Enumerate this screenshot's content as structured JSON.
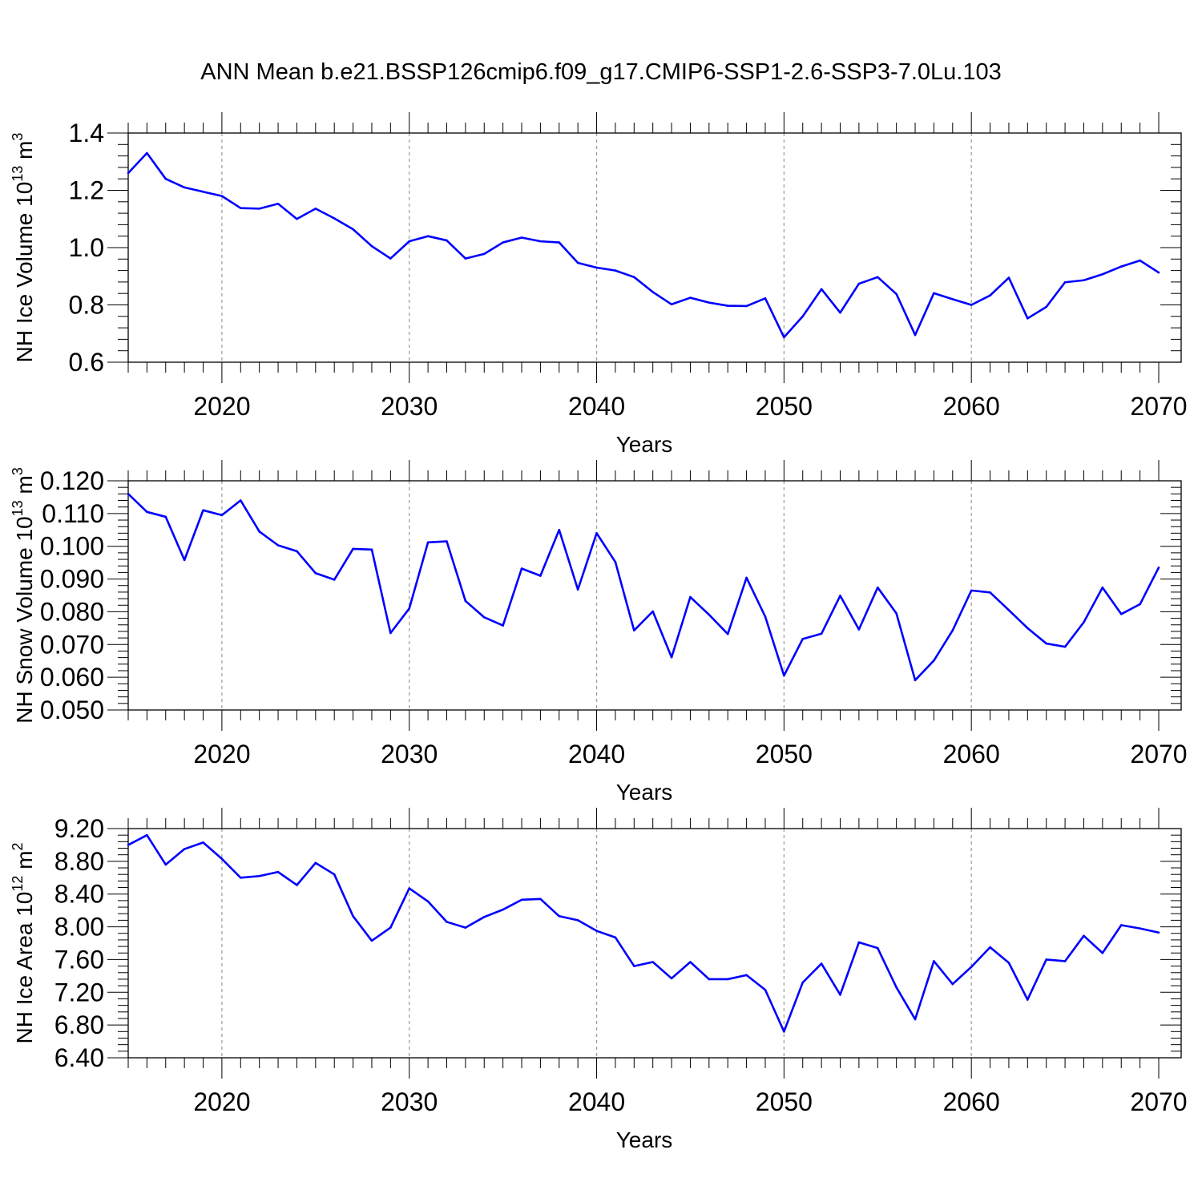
{
  "title": "ANN Mean b.e21.BSSP126cmip6.f09_g17.CMIP6-SSP1-2.6-SSP3-7.0Lu.103",
  "colors": {
    "line": "#0000ff",
    "axis": "#000000",
    "grid": "#9a9a9a"
  },
  "chart_data": [
    {
      "type": "line",
      "title": "",
      "xlabel": "Years",
      "ylabel": "NH Ice Volume 10",
      "ylabel_sup1": "13",
      "ylabel_unit": " m",
      "ylabel_sup2": "3",
      "xlim": [
        2015,
        2070
      ],
      "ylim": [
        0.6,
        1.4
      ],
      "x_ticks": [
        2020,
        2030,
        2040,
        2050,
        2060,
        2070
      ],
      "x_tick_labels": [
        "2020",
        "2030",
        "2040",
        "2050",
        "2060",
        "2070"
      ],
      "y_ticks": [
        0.6,
        0.8,
        1.0,
        1.2,
        1.4
      ],
      "y_tick_labels": [
        "0.6",
        "0.8",
        "1.0",
        "1.2",
        "1.4"
      ],
      "grid": "vertical dashed at major x ticks",
      "series": [
        {
          "x": [
            2015,
            2016,
            2017,
            2018,
            2019,
            2020,
            2021,
            2022,
            2023,
            2024,
            2025,
            2026,
            2027,
            2028,
            2029,
            2030,
            2031,
            2032,
            2033,
            2034,
            2035,
            2036,
            2037,
            2038,
            2039,
            2040,
            2041,
            2042,
            2043,
            2044,
            2045,
            2046,
            2047,
            2048,
            2049,
            2050,
            2051,
            2052,
            2053,
            2054,
            2055,
            2056,
            2057,
            2058,
            2059,
            2060,
            2061,
            2062,
            2063,
            2064,
            2065,
            2066,
            2067,
            2068,
            2069,
            2070
          ],
          "values": [
            1.26,
            1.33,
            1.24,
            1.21,
            1.195,
            1.18,
            1.138,
            1.136,
            1.153,
            1.1,
            1.136,
            1.102,
            1.064,
            1.005,
            0.962,
            1.022,
            1.04,
            1.025,
            0.962,
            0.978,
            1.018,
            1.035,
            1.022,
            1.018,
            0.947,
            0.93,
            0.92,
            0.897,
            0.845,
            0.802,
            0.825,
            0.808,
            0.797,
            0.796,
            0.823,
            0.687,
            0.76,
            0.855,
            0.773,
            0.874,
            0.897,
            0.838,
            0.695,
            0.841,
            0.82,
            0.8,
            0.833,
            0.895,
            0.753,
            0.793,
            0.879,
            0.886,
            0.907,
            0.934,
            0.955,
            0.913
          ]
        }
      ]
    },
    {
      "type": "line",
      "title": "",
      "xlabel": "Years",
      "ylabel": "NH Snow Volume 10",
      "ylabel_sup1": "13",
      "ylabel_unit": " m",
      "ylabel_sup2": "3",
      "xlim": [
        2015,
        2070
      ],
      "ylim": [
        0.05,
        0.12
      ],
      "x_ticks": [
        2020,
        2030,
        2040,
        2050,
        2060,
        2070
      ],
      "x_tick_labels": [
        "2020",
        "2030",
        "2040",
        "2050",
        "2060",
        "2070"
      ],
      "y_ticks": [
        0.05,
        0.06,
        0.07,
        0.08,
        0.09,
        0.1,
        0.11,
        0.12
      ],
      "y_tick_labels": [
        "0.050",
        "0.060",
        "0.070",
        "0.080",
        "0.090",
        "0.100",
        "0.110",
        "0.120"
      ],
      "grid": "vertical dashed at major x ticks",
      "series": [
        {
          "x": [
            2015,
            2016,
            2017,
            2018,
            2019,
            2020,
            2021,
            2022,
            2023,
            2024,
            2025,
            2026,
            2027,
            2028,
            2029,
            2030,
            2031,
            2032,
            2033,
            2034,
            2035,
            2036,
            2037,
            2038,
            2039,
            2040,
            2041,
            2042,
            2043,
            2044,
            2045,
            2046,
            2047,
            2048,
            2049,
            2050,
            2051,
            2052,
            2053,
            2054,
            2055,
            2056,
            2057,
            2058,
            2059,
            2060,
            2061,
            2062,
            2063,
            2064,
            2065,
            2066,
            2067,
            2068,
            2069,
            2070
          ],
          "values": [
            0.116,
            0.1105,
            0.109,
            0.0958,
            0.111,
            0.1095,
            0.114,
            0.1045,
            0.1003,
            0.0985,
            0.0918,
            0.0898,
            0.0992,
            0.099,
            0.0735,
            0.081,
            0.1012,
            0.1015,
            0.0833,
            0.0783,
            0.0758,
            0.0932,
            0.091,
            0.105,
            0.0868,
            0.104,
            0.0952,
            0.0743,
            0.0801,
            0.0661,
            0.0845,
            0.0791,
            0.0732,
            0.0904,
            0.0785,
            0.0605,
            0.0717,
            0.0733,
            0.0849,
            0.0746,
            0.0874,
            0.0795,
            0.0591,
            0.0651,
            0.0743,
            0.0865,
            0.0859,
            0.0805,
            0.075,
            0.0703,
            0.0693,
            0.0768,
            0.0874,
            0.0793,
            0.0823,
            0.0935
          ]
        }
      ]
    },
    {
      "type": "line",
      "title": "",
      "xlabel": "Years",
      "ylabel": "NH Ice Area 10",
      "ylabel_sup1": "12",
      "ylabel_unit": " m",
      "ylabel_sup2": "2",
      "xlim": [
        2015,
        2070
      ],
      "ylim": [
        6.4,
        9.2
      ],
      "x_ticks": [
        2020,
        2030,
        2040,
        2050,
        2060,
        2070
      ],
      "x_tick_labels": [
        "2020",
        "2030",
        "2040",
        "2050",
        "2060",
        "2070"
      ],
      "y_ticks": [
        6.4,
        6.8,
        7.2,
        7.6,
        8.0,
        8.4,
        8.8,
        9.2
      ],
      "y_tick_labels": [
        "6.40",
        "6.80",
        "7.20",
        "7.60",
        "8.00",
        "8.40",
        "8.80",
        "9.20"
      ],
      "grid": "vertical dashed at major x ticks",
      "series": [
        {
          "x": [
            2015,
            2016,
            2017,
            2018,
            2019,
            2020,
            2021,
            2022,
            2023,
            2024,
            2025,
            2026,
            2027,
            2028,
            2029,
            2030,
            2031,
            2032,
            2033,
            2034,
            2035,
            2036,
            2037,
            2038,
            2039,
            2040,
            2041,
            2042,
            2043,
            2044,
            2045,
            2046,
            2047,
            2048,
            2049,
            2050,
            2051,
            2052,
            2053,
            2054,
            2055,
            2056,
            2057,
            2058,
            2059,
            2060,
            2061,
            2062,
            2063,
            2064,
            2065,
            2066,
            2067,
            2068,
            2069,
            2070
          ],
          "values": [
            9.0,
            9.12,
            8.76,
            8.95,
            9.03,
            8.83,
            8.6,
            8.62,
            8.67,
            8.51,
            8.78,
            8.64,
            8.13,
            7.83,
            7.99,
            8.47,
            8.31,
            8.06,
            7.99,
            8.12,
            8.21,
            8.33,
            8.34,
            8.13,
            8.08,
            7.95,
            7.87,
            7.52,
            7.57,
            7.37,
            7.57,
            7.36,
            7.36,
            7.41,
            7.23,
            6.72,
            7.32,
            7.55,
            7.17,
            7.81,
            7.74,
            7.26,
            6.87,
            7.58,
            7.3,
            7.51,
            7.75,
            7.56,
            7.11,
            7.6,
            7.58,
            7.89,
            7.68,
            8.02,
            7.98,
            7.93
          ]
        }
      ]
    }
  ]
}
